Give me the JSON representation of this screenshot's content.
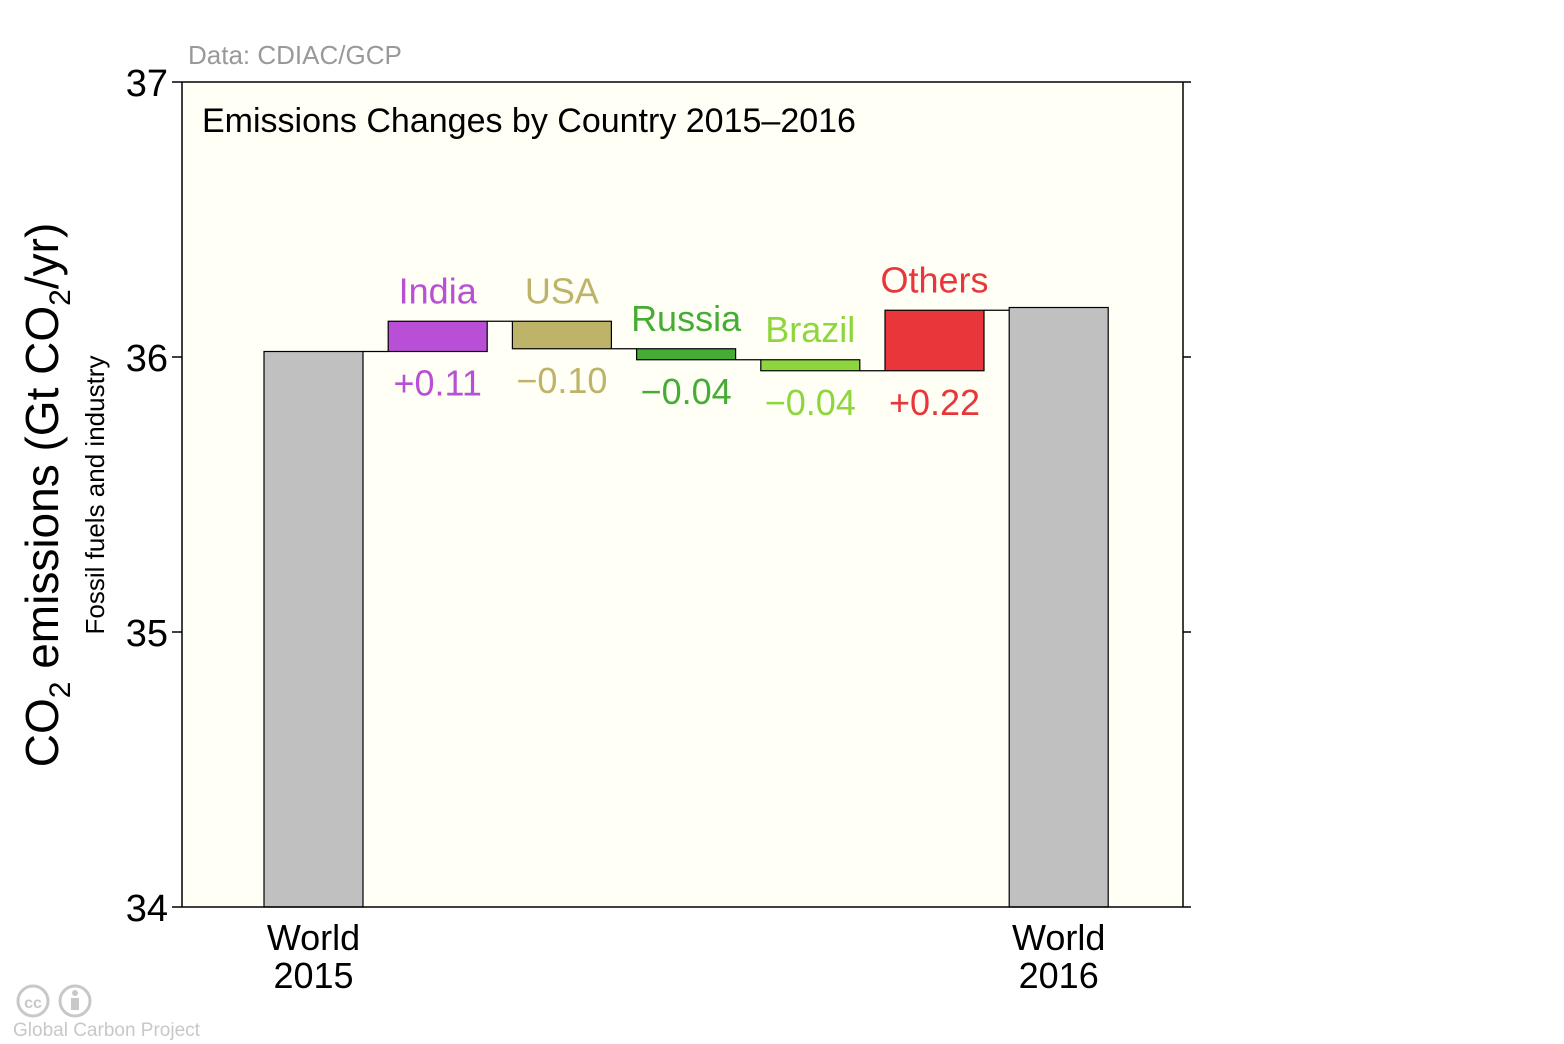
{
  "source_note": "Data: CDIAC/GCP",
  "credit": "Global Carbon Project",
  "chart_data": {
    "type": "bar",
    "subtype": "waterfall",
    "title": "Emissions Changes by Country 2015–2016",
    "ylabel_main": "CO",
    "ylabel_sub": "2",
    "ylabel_rest": " emissions (Gt CO",
    "ylabel_sub2": "2",
    "ylabel_end": "/yr)",
    "ylabel_secondary": "Fossil fuels and industry",
    "ylim": [
      34,
      37
    ],
    "yticks": [
      "34",
      "35",
      "36",
      "37"
    ],
    "grid": false,
    "background_color": "#fffff5",
    "totals": [
      {
        "label_line1": "World",
        "label_line2": "2015",
        "value": 36.02,
        "color": "#c0c0c0"
      },
      {
        "label_line1": "World",
        "label_line2": "2016",
        "value": 36.18,
        "color": "#c0c0c0"
      }
    ],
    "changes": [
      {
        "name": "India",
        "label": "+0.11",
        "value": 0.11,
        "color": "#b84fd6"
      },
      {
        "name": "USA",
        "label": "−0.10",
        "value": -0.1,
        "color": "#bdb46a"
      },
      {
        "name": "Russia",
        "label": "−0.04",
        "value": -0.04,
        "color": "#45ad35"
      },
      {
        "name": "Brazil",
        "label": "−0.04",
        "value": -0.04,
        "color": "#8ed63d"
      },
      {
        "name": "Others",
        "label": "+0.22",
        "value": 0.22,
        "color": "#e8363a"
      }
    ]
  }
}
